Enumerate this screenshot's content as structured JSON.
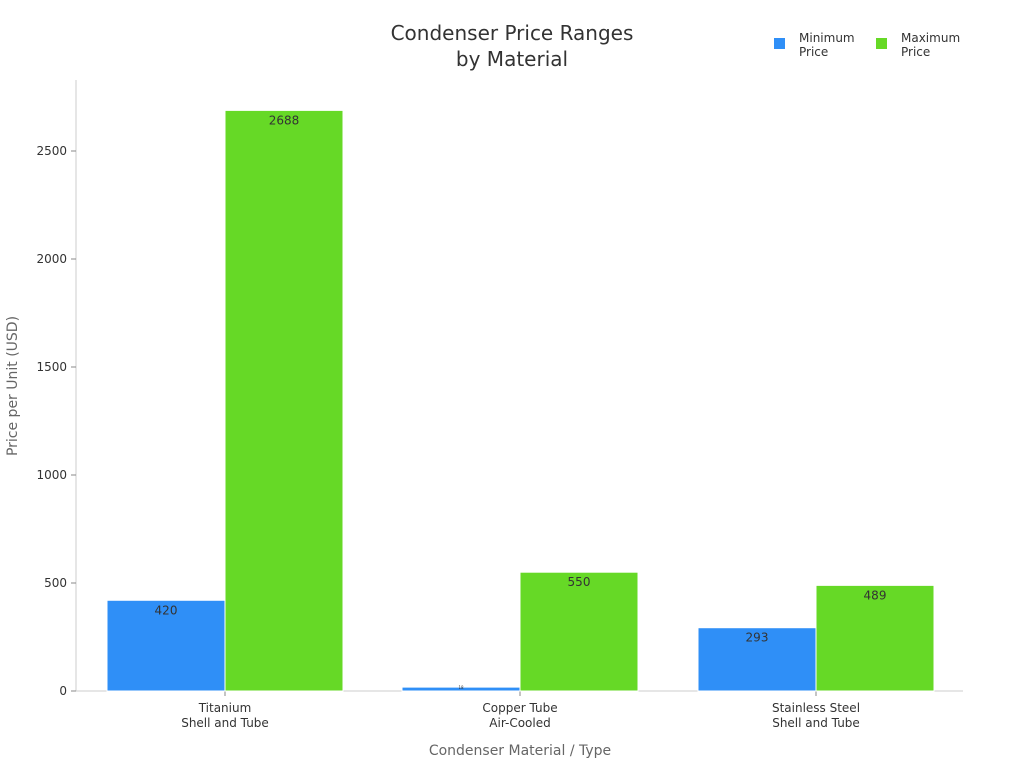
{
  "chart_data": {
    "type": "bar",
    "title": "Condenser Price Ranges\nby Material",
    "xlabel": "Condenser Material / Type",
    "ylabel": "Price per Unit (USD)",
    "categories": [
      "Titanium\nShell and Tube",
      "Copper Tube\nAir-Cooled",
      "Stainless Steel\nShell and Tube"
    ],
    "series": [
      {
        "name": "Minimum\nPrice",
        "values": [
          420,
          18,
          293
        ],
        "color": "#2f8ff7"
      },
      {
        "name": "Maximum\nPrice",
        "values": [
          2688,
          550,
          489
        ],
        "color": "#66d926"
      }
    ],
    "yticks": [
      0,
      500,
      1000,
      1500,
      2000,
      2500
    ],
    "ylim": [
      0,
      2830
    ],
    "grid": false,
    "legend": "top-right"
  }
}
